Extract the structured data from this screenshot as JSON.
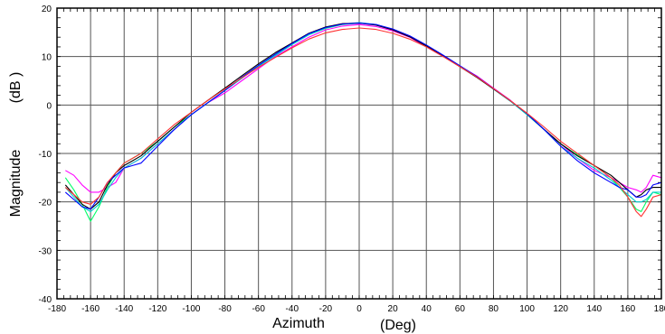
{
  "chart_data": {
    "type": "line",
    "title": "",
    "xlabel": "Azimuth",
    "xlabel_unit": "(Deg)",
    "ylabel": "Magnitude",
    "ylabel_unit": "(dB )",
    "xlim": [
      -180,
      180
    ],
    "ylim": [
      -40,
      20
    ],
    "xticks": [
      -180,
      -160,
      -140,
      -120,
      -100,
      -80,
      -60,
      -40,
      -20,
      0,
      20,
      40,
      60,
      80,
      100,
      120,
      140,
      160,
      180
    ],
    "yticks": [
      -40,
      -30,
      -20,
      -10,
      0,
      10,
      20
    ],
    "grid": true,
    "legend": "none",
    "x": [
      -175,
      -170,
      -165,
      -160,
      -155,
      -150,
      -145,
      -140,
      -135,
      -130,
      -120,
      -110,
      -100,
      -90,
      -80,
      -70,
      -60,
      -50,
      -40,
      -30,
      -20,
      -10,
      0,
      10,
      20,
      30,
      40,
      50,
      60,
      70,
      80,
      90,
      100,
      110,
      120,
      130,
      140,
      150,
      155,
      160,
      165,
      168,
      171,
      175,
      180
    ],
    "series": [
      {
        "color": "#ff00ff",
        "values": [
          -13.5,
          -14.5,
          -16.5,
          -18,
          -18,
          -17,
          -16,
          -13,
          -12,
          -11,
          -8,
          -5,
          -2,
          0.5,
          2.5,
          5,
          7.5,
          10,
          12,
          14,
          15.5,
          16.3,
          16.6,
          16.2,
          15.3,
          14,
          12,
          10,
          8,
          6,
          3.5,
          1,
          -2,
          -5,
          -8,
          -11,
          -13.5,
          -15,
          -16,
          -17,
          -17.5,
          -18,
          -17,
          -14.5,
          -15
        ]
      },
      {
        "color": "#00ff66",
        "values": [
          -15,
          -17.5,
          -20.5,
          -24,
          -21,
          -17,
          -14,
          -12,
          -11,
          -10,
          -7.5,
          -4.5,
          -2,
          0.5,
          3,
          5.5,
          8,
          10.3,
          12.5,
          14.5,
          15.8,
          16.6,
          16.9,
          16.6,
          15.6,
          14.2,
          12.3,
          10.2,
          8,
          5.8,
          3.3,
          0.8,
          -2,
          -5,
          -8,
          -10.3,
          -12.5,
          -15,
          -17,
          -19,
          -21.5,
          -22,
          -20,
          -18,
          -18.5
        ]
      },
      {
        "color": "#00cccc",
        "values": [
          -17,
          -19,
          -21,
          -22,
          -20.5,
          -17.5,
          -15,
          -13,
          -12,
          -11,
          -8,
          -5,
          -2,
          0.5,
          3,
          5.5,
          8,
          10.2,
          12.5,
          14.5,
          15.9,
          16.7,
          17,
          16.6,
          15.6,
          14.2,
          12.3,
          10.2,
          8,
          5.8,
          3.3,
          0.8,
          -2,
          -5,
          -8.5,
          -11,
          -13,
          -15.5,
          -17,
          -18.5,
          -20,
          -20,
          -19.5,
          -18,
          -18
        ]
      },
      {
        "color": "#000000",
        "values": [
          -16.5,
          -18.5,
          -20.5,
          -21.5,
          -20,
          -16.5,
          -14,
          -12.5,
          -11.5,
          -10.5,
          -7.5,
          -4.5,
          -1.5,
          1,
          3.5,
          6,
          8.5,
          10.8,
          12.8,
          14.8,
          16.1,
          16.8,
          16.9,
          16.5,
          15.5,
          14.1,
          12.2,
          10.1,
          7.9,
          5.7,
          3.3,
          0.9,
          -1.8,
          -5,
          -8,
          -10.5,
          -12.5,
          -14.5,
          -16,
          -17.5,
          -19,
          -18.5,
          -17.5,
          -17,
          -17
        ]
      },
      {
        "color": "#0000ff",
        "values": [
          -18,
          -19.5,
          -21,
          -21.5,
          -19,
          -16,
          -14.5,
          -13,
          -12.5,
          -12,
          -8.5,
          -5,
          -2,
          0.5,
          3,
          5.7,
          8.2,
          10.5,
          12.7,
          14.7,
          16,
          16.7,
          16.9,
          16.6,
          15.7,
          14.3,
          12.4,
          10.3,
          8.1,
          5.9,
          3.4,
          0.9,
          -1.8,
          -5,
          -8.5,
          -11.5,
          -14,
          -16,
          -17,
          -17.5,
          -19,
          -19,
          -18.5,
          -16.5,
          -16
        ]
      },
      {
        "color": "#ff3333",
        "values": [
          -17,
          -18.5,
          -20,
          -20.5,
          -19,
          -16,
          -14,
          -12,
          -11,
          -10,
          -7,
          -4,
          -1.5,
          1,
          3.3,
          5.6,
          7.8,
          9.8,
          11.8,
          13.6,
          14.9,
          15.6,
          15.9,
          15.6,
          14.8,
          13.6,
          12,
          10,
          7.9,
          5.8,
          3.4,
          0.9,
          -1.7,
          -4.5,
          -7.5,
          -10,
          -12.5,
          -15,
          -16.5,
          -19,
          -22,
          -23,
          -21.5,
          -19,
          -18.5
        ]
      }
    ]
  }
}
